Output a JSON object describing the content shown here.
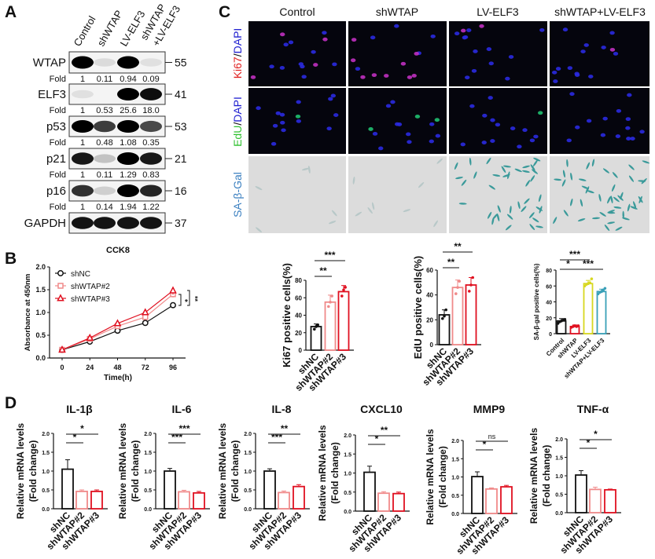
{
  "panel_letters": {
    "a": "A",
    "b": "B",
    "c": "C",
    "d": "D"
  },
  "panel_a": {
    "lanes": [
      "Control",
      "shWTAP",
      "LV-ELF3",
      "shWTAP",
      "+LV-ELF3"
    ],
    "fold_label": "Fold",
    "blots": [
      {
        "protein": "WTAP",
        "kda": "55",
        "fold": [
          "1",
          "0.11",
          "0.94",
          "0.09"
        ]
      },
      {
        "protein": "ELF3",
        "kda": "41",
        "fold": [
          "1",
          "0.53",
          "25.6",
          "18.0"
        ]
      },
      {
        "protein": "p53",
        "kda": "53",
        "fold": [
          "1",
          "0.48",
          "1.08",
          "0.35"
        ]
      },
      {
        "protein": "p21",
        "kda": "21",
        "fold": [
          "1",
          "0.11",
          "1.29",
          "0.83"
        ]
      },
      {
        "protein": "p16",
        "kda": "16",
        "fold": [
          "1",
          "0.14",
          "1.94",
          "1.22"
        ]
      },
      {
        "protein": "GAPDH",
        "kda": "37"
      }
    ]
  },
  "panel_c": {
    "columns": [
      "Control",
      "shWTAP",
      "LV-ELF3",
      "shWTAP+LV-ELF3"
    ],
    "rows": [
      {
        "parts": [
          "Ki67",
          "/",
          "DAPI"
        ],
        "colors": [
          "#e02020",
          "#111111",
          "#2020d0"
        ]
      },
      {
        "parts": [
          "EdU",
          "/",
          "DAPI"
        ],
        "colors": [
          "#30c030",
          "#111111",
          "#2020d0"
        ]
      },
      {
        "parts": [
          "SA-β-Gal"
        ],
        "colors": [
          "#3a7fc0"
        ]
      }
    ]
  },
  "colors": {
    "shNC": "#111111",
    "shWTAP2": "#f08a8a",
    "shWTAP3": "#e01020",
    "shWTAP": "#e01020",
    "LV-ELF3": "#d8d820",
    "combo": "#3aa0b8"
  },
  "chart_data": [
    {
      "type": "line",
      "title": "CCK8",
      "xlabel": "Time(h)",
      "ylabel": "Absorbance at 450nm",
      "x": [
        0,
        24,
        48,
        72,
        96
      ],
      "xticks": [
        "0",
        "24",
        "48",
        "72",
        "96"
      ],
      "ylim": [
        0,
        2
      ],
      "yticks": [
        "0.0",
        "0.5",
        "1.0",
        "1.5",
        "2.0"
      ],
      "legend_position": "top-left",
      "series": [
        {
          "name": "shNC",
          "values": [
            0.18,
            0.36,
            0.6,
            0.77,
            1.16
          ],
          "err": [
            0.02,
            0.02,
            0.04,
            0.04,
            0.06
          ],
          "marker": "circle",
          "color": "#111111"
        },
        {
          "name": "shWTAP#2",
          "values": [
            0.18,
            0.42,
            0.7,
            0.9,
            1.4
          ],
          "err": [
            0.02,
            0.03,
            0.04,
            0.05,
            0.07
          ],
          "marker": "square",
          "color": "#f08a8a"
        },
        {
          "name": "shWTAP#3",
          "values": [
            0.18,
            0.44,
            0.76,
            1.0,
            1.48
          ],
          "err": [
            0.02,
            0.03,
            0.04,
            0.06,
            0.09
          ],
          "marker": "triangle",
          "color": "#e01020"
        }
      ],
      "annotations": [
        "*",
        "**"
      ]
    },
    {
      "type": "bar",
      "title": "",
      "ylabel": "Ki67 positive cells(%)",
      "categories": [
        "shNC",
        "shWTAP#2",
        "shWTAP#3"
      ],
      "values": [
        27,
        55,
        67
      ],
      "err": [
        3,
        8,
        7
      ],
      "points": [
        [
          24,
          27,
          29
        ],
        [
          50,
          55,
          62
        ],
        [
          62,
          69,
          72
        ]
      ],
      "ylim": [
        0,
        80
      ],
      "yticks": [
        "0",
        "20",
        "40",
        "60",
        "80"
      ],
      "significance": [
        {
          "from": 0,
          "to": 1,
          "label": "**"
        },
        {
          "from": 0,
          "to": 2,
          "label": "***"
        }
      ]
    },
    {
      "type": "bar",
      "title": "",
      "ylabel": "EdU positive cells(%)",
      "categories": [
        "shNC",
        "shWTAP#2",
        "shWTAP#3"
      ],
      "values": [
        24,
        46,
        48
      ],
      "err": [
        4,
        6,
        6
      ],
      "points": [
        [
          21,
          23,
          28
        ],
        [
          41,
          46,
          51
        ],
        [
          43,
          48,
          54
        ]
      ],
      "ylim": [
        0,
        60
      ],
      "yticks": [
        "0",
        "20",
        "40",
        "60"
      ],
      "significance": [
        {
          "from": 0,
          "to": 1,
          "label": "**"
        },
        {
          "from": 0,
          "to": 2,
          "label": "**"
        }
      ]
    },
    {
      "type": "bar",
      "title": "",
      "ylabel": "SA-β-gal positive cells(%)",
      "categories": [
        "Control",
        "shWTAP",
        "LV-ELF3",
        "shWTAP+LV-ELF3"
      ],
      "values": [
        16,
        9,
        63,
        53
      ],
      "err": [
        3,
        2,
        4,
        3
      ],
      "points": [
        [
          13,
          15,
          16,
          17,
          18
        ],
        [
          8,
          9,
          10,
          9,
          10
        ],
        [
          60,
          62,
          63,
          64,
          69
        ],
        [
          50,
          52,
          53,
          55,
          57
        ]
      ],
      "ylim": [
        0,
        80
      ],
      "yticks": [
        "0",
        "20",
        "40",
        "60",
        "80"
      ],
      "significance": [
        {
          "from": 0,
          "to": 1,
          "label": "*"
        },
        {
          "from": 0,
          "to": 2,
          "label": "***"
        },
        {
          "from": 1,
          "to": 3,
          "label": "***"
        }
      ]
    },
    {
      "type": "bar",
      "title": "IL-1β",
      "ylabel": [
        "Relative mRNA levels",
        "(Fold change)"
      ],
      "categories": [
        "shNC",
        "shWTAP#2",
        "shWTAP#3"
      ],
      "values": [
        1.05,
        0.46,
        0.46
      ],
      "err": [
        0.25,
        0.04,
        0.04
      ],
      "ylim": [
        0,
        2
      ],
      "yticks": [
        "0.0",
        "0.5",
        "1.0",
        "1.5",
        "2.0"
      ],
      "significance": [
        {
          "from": 0,
          "to": 1,
          "label": "*"
        },
        {
          "from": 0,
          "to": 2,
          "label": "*"
        }
      ]
    },
    {
      "type": "bar",
      "title": "IL-6",
      "ylabel": [
        "Relative mRNA levels",
        "(Fold change)"
      ],
      "categories": [
        "shNC",
        "shWTAP#2",
        "shWTAP#3"
      ],
      "values": [
        1.0,
        0.45,
        0.42
      ],
      "err": [
        0.07,
        0.04,
        0.04
      ],
      "ylim": [
        0,
        2
      ],
      "yticks": [
        "0.0",
        "0.5",
        "1.0",
        "1.5",
        "2.0"
      ],
      "significance": [
        {
          "from": 0,
          "to": 1,
          "label": "***"
        },
        {
          "from": 0,
          "to": 2,
          "label": "***"
        }
      ]
    },
    {
      "type": "bar",
      "title": "IL-8",
      "ylabel": [
        "Relative mRNA levels",
        "(Fold change)"
      ],
      "categories": [
        "shNC",
        "shWTAP#2",
        "shWTAP#3"
      ],
      "values": [
        1.0,
        0.43,
        0.59
      ],
      "err": [
        0.06,
        0.04,
        0.05
      ],
      "ylim": [
        0,
        2
      ],
      "yticks": [
        "0.0",
        "0.5",
        "1.0",
        "1.5",
        "2.0"
      ],
      "significance": [
        {
          "from": 0,
          "to": 1,
          "label": "***"
        },
        {
          "from": 0,
          "to": 2,
          "label": "**"
        }
      ]
    },
    {
      "type": "bar",
      "title": "CXCL10",
      "ylabel": [
        "Relative mRNA levels",
        "(Fold change)"
      ],
      "categories": [
        "shNC",
        "shWTAP#2",
        "shWTAP#3"
      ],
      "values": [
        1.02,
        0.47,
        0.46
      ],
      "err": [
        0.16,
        0.04,
        0.04
      ],
      "ylim": [
        0,
        2
      ],
      "yticks": [
        "0.0",
        "0.5",
        "1.0",
        "1.5",
        "2.0"
      ],
      "significance": [
        {
          "from": 0,
          "to": 1,
          "label": "*"
        },
        {
          "from": 0,
          "to": 2,
          "label": "**"
        }
      ]
    },
    {
      "type": "bar",
      "title": "MMP9",
      "ylabel": [
        "Relative mRNA levels",
        "(Fold change)"
      ],
      "categories": [
        "shNC",
        "shWTAP#2",
        "shWTAP#3"
      ],
      "values": [
        1.01,
        0.67,
        0.73
      ],
      "err": [
        0.13,
        0.03,
        0.04
      ],
      "ylim": [
        0,
        2
      ],
      "yticks": [
        "0.0",
        "0.5",
        "1.0",
        "1.5",
        "2.0"
      ],
      "significance": [
        {
          "from": 0,
          "to": 1,
          "label": "*"
        },
        {
          "from": 0,
          "to": 2,
          "label": "ns"
        }
      ]
    },
    {
      "type": "bar",
      "title": "TNF-α",
      "ylabel": [
        "Relative mRNA levels",
        "(Fold change)"
      ],
      "categories": [
        "shNC",
        "shWTAP#2",
        "shWTAP#3"
      ],
      "values": [
        1.02,
        0.63,
        0.62
      ],
      "err": [
        0.12,
        0.06,
        0.02
      ],
      "ylim": [
        0,
        2
      ],
      "yticks": [
        "0.0",
        "0.5",
        "1.0",
        "1.5",
        "2.0"
      ],
      "significance": [
        {
          "from": 0,
          "to": 1,
          "label": "*"
        },
        {
          "from": 0,
          "to": 2,
          "label": "*"
        }
      ]
    }
  ]
}
